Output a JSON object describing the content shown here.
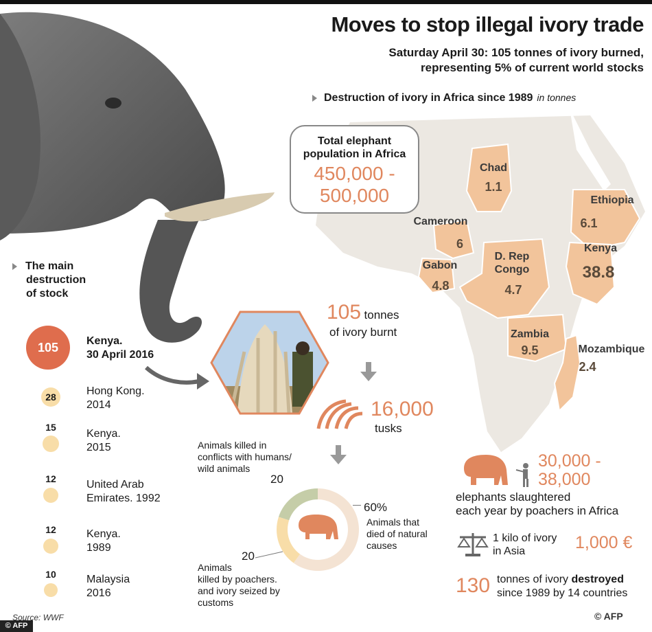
{
  "title": "Moves to stop illegal ivory trade",
  "subtitle_line1": "Saturday April 30: 105 tonnes of ivory burned,",
  "subtitle_line2": "representing 5% of current world stocks",
  "map_section": {
    "label": "Destruction of ivory in Africa since 1989",
    "unit": "in tonnes"
  },
  "population_box": {
    "title_line1": "Total elephant",
    "title_line2": "population in Africa",
    "value_line1": "450,000 -",
    "value_line2": "500,000"
  },
  "map_countries": [
    {
      "name": "Chad",
      "value": "1.1"
    },
    {
      "name": "Ethiopia",
      "value": "6.1"
    },
    {
      "name": "Cameroon",
      "value": "6"
    },
    {
      "name": "Kenya",
      "value": "38.8"
    },
    {
      "name": "D. Rep Congo",
      "value": "4.7"
    },
    {
      "name": "Gabon",
      "value": "4.8"
    },
    {
      "name": "Zambia",
      "value": "9.5"
    },
    {
      "name": "Mozambique",
      "value": "2.4"
    }
  ],
  "main_destruction": {
    "line1": "The main",
    "line2": "destruction",
    "line3": "of stock"
  },
  "stock_list": [
    {
      "value": "105",
      "line1": "Kenya.",
      "line2": "30 April 2016"
    },
    {
      "value": "28",
      "line1": "Hong Kong.",
      "line2": "2014"
    },
    {
      "value": "15",
      "line1": "Kenya.",
      "line2": "2015"
    },
    {
      "value": "12",
      "line1": "United Arab",
      "line2": "Emirates. 1992"
    },
    {
      "value": "12",
      "line1": "Kenya.",
      "line2": "1989"
    },
    {
      "value": "10",
      "line1": "Malaysia",
      "line2": "2016"
    }
  ],
  "burnt": {
    "number": "105",
    "unit": "tonnes",
    "text": "of ivory burnt"
  },
  "tusks": {
    "number": "16,000",
    "label": "tusks"
  },
  "donut": {
    "conflict_label_line1": "Animals killed in",
    "conflict_label_line2": "conflicts with humans/",
    "conflict_label_line3": "wild animals",
    "conflict_value": "20",
    "natural_value": "60%",
    "natural_label_line1": "Animals that",
    "natural_label_line2": "died of natural",
    "natural_label_line3": "causes",
    "poachers_value": "20",
    "poachers_label_line1": "Animals",
    "poachers_label_line2": "killed by poachers.",
    "poachers_label_line3": "and ivory seized by",
    "poachers_label_line4": "customs"
  },
  "slaughtered": {
    "line1": "30,000 -",
    "line2": "38,000",
    "text1": "elephants slaughtered",
    "text2": "each year by poachers in Africa"
  },
  "price": {
    "text1": "1 kilo of ivory",
    "text2": "in Asia",
    "value": "1,000 €"
  },
  "destroyed": {
    "number": "130",
    "text1a": "tonnes of ivory ",
    "text1b": "destroyed",
    "text2": "since 1989 by 14 countries"
  },
  "source": "Source: WWF",
  "credit": "© AFP",
  "afp_badge": "© AFP",
  "chart_data": {
    "type": "pie",
    "categories": [
      "Animals killed in conflicts with humans/ wild animals",
      "Animals that died of natural causes",
      "Animals killed by poachers. and ivory seized by customs"
    ],
    "values": [
      20,
      60,
      20
    ],
    "colors": [
      "#c5cda8",
      "#f4e3d3",
      "#f8dda8"
    ]
  },
  "colors": {
    "accent": "#e0875e",
    "map_highlight": "#f2c49b",
    "map_land": "#ece8e2"
  },
  "icons": [
    "elephant-photo",
    "ivory-pile-photo",
    "tusks-icon",
    "elephant-icon",
    "hunter-icon",
    "scale-icon",
    "arrow-down-icon"
  ]
}
